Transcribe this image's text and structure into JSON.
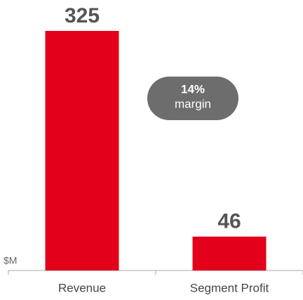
{
  "chart_data": {
    "type": "bar",
    "categories": [
      "Revenue",
      "Segment Profit"
    ],
    "values": [
      325,
      46
    ],
    "color": "#e2001a",
    "ylim": [
      0,
      325
    ],
    "unit_label": "$M",
    "annotation": [
      "14%",
      "margin"
    ]
  }
}
